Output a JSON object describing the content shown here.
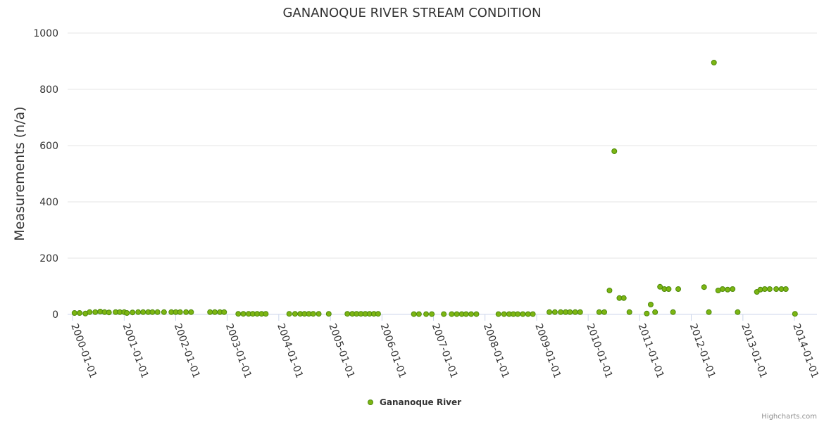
{
  "chart_data": {
    "type": "scatter",
    "title": "GANANOQUE RIVER STREAM CONDITION",
    "ylabel": "Measurements (n/a)",
    "xlabel": "",
    "ylim": [
      0,
      1000
    ],
    "yticks": [
      0,
      200,
      400,
      600,
      800,
      1000
    ],
    "xlim": [
      "2000-01-01",
      "2014-01-01"
    ],
    "xticks": [
      "2000-01-01",
      "2001-01-01",
      "2002-01-01",
      "2003-01-01",
      "2004-01-01",
      "2005-01-01",
      "2006-01-01",
      "2007-01-01",
      "2008-01-01",
      "2009-01-01",
      "2010-01-01",
      "2011-01-01",
      "2012-01-01",
      "2013-01-01",
      "2014-01-01"
    ],
    "grid": true,
    "legend_position": "bottom-center",
    "series": [
      {
        "name": "Gananoque River",
        "color": "#7cb513",
        "stroke": "#4d8a0a",
        "points": [
          [
            "2000-01-15",
            5
          ],
          [
            "2000-02-20",
            5
          ],
          [
            "2000-04-01",
            3
          ],
          [
            "2000-05-01",
            8
          ],
          [
            "2000-06-10",
            8
          ],
          [
            "2000-07-15",
            10
          ],
          [
            "2000-08-15",
            8
          ],
          [
            "2000-09-15",
            7
          ],
          [
            "2000-11-01",
            8
          ],
          [
            "2000-12-01",
            8
          ],
          [
            "2001-01-01",
            8
          ],
          [
            "2001-01-20",
            5
          ],
          [
            "2001-03-01",
            7
          ],
          [
            "2001-04-10",
            8
          ],
          [
            "2001-05-15",
            8
          ],
          [
            "2001-06-20",
            8
          ],
          [
            "2001-07-20",
            8
          ],
          [
            "2001-08-25",
            8
          ],
          [
            "2001-10-10",
            8
          ],
          [
            "2001-12-01",
            8
          ],
          [
            "2002-01-01",
            8
          ],
          [
            "2002-02-01",
            8
          ],
          [
            "2002-03-15",
            8
          ],
          [
            "2002-04-20",
            8
          ],
          [
            "2002-09-01",
            8
          ],
          [
            "2002-10-05",
            8
          ],
          [
            "2002-11-10",
            8
          ],
          [
            "2002-12-10",
            8
          ],
          [
            "2003-03-20",
            2
          ],
          [
            "2003-04-25",
            2
          ],
          [
            "2003-06-01",
            2
          ],
          [
            "2003-07-01",
            2
          ],
          [
            "2003-08-01",
            2
          ],
          [
            "2003-09-01",
            2
          ],
          [
            "2003-10-01",
            2
          ],
          [
            "2004-03-15",
            2
          ],
          [
            "2004-04-25",
            2
          ],
          [
            "2004-06-01",
            2
          ],
          [
            "2004-07-01",
            2
          ],
          [
            "2004-08-01",
            2
          ],
          [
            "2004-09-01",
            2
          ],
          [
            "2004-10-10",
            2
          ],
          [
            "2004-12-20",
            2
          ],
          [
            "2005-05-01",
            2
          ],
          [
            "2005-06-05",
            2
          ],
          [
            "2005-07-05",
            2
          ],
          [
            "2005-08-05",
            2
          ],
          [
            "2005-09-05",
            2
          ],
          [
            "2005-10-05",
            2
          ],
          [
            "2005-11-05",
            2
          ],
          [
            "2005-12-05",
            2
          ],
          [
            "2006-08-15",
            1
          ],
          [
            "2006-09-20",
            1
          ],
          [
            "2006-11-10",
            1
          ],
          [
            "2006-12-20",
            1
          ],
          [
            "2007-03-15",
            1
          ],
          [
            "2007-05-10",
            1
          ],
          [
            "2007-06-15",
            1
          ],
          [
            "2007-07-20",
            1
          ],
          [
            "2007-08-20",
            1
          ],
          [
            "2007-09-25",
            1
          ],
          [
            "2007-11-01",
            1
          ],
          [
            "2008-04-05",
            1
          ],
          [
            "2008-05-15",
            1
          ],
          [
            "2008-06-20",
            1
          ],
          [
            "2008-07-20",
            1
          ],
          [
            "2008-08-20",
            1
          ],
          [
            "2008-09-25",
            1
          ],
          [
            "2008-11-01",
            1
          ],
          [
            "2008-12-05",
            1
          ],
          [
            "2009-04-01",
            8
          ],
          [
            "2009-05-10",
            8
          ],
          [
            "2009-06-20",
            8
          ],
          [
            "2009-07-25",
            8
          ],
          [
            "2009-08-25",
            8
          ],
          [
            "2009-10-01",
            8
          ],
          [
            "2009-11-05",
            8
          ],
          [
            "2010-03-20",
            8
          ],
          [
            "2010-04-25",
            8
          ],
          [
            "2010-06-01",
            85
          ],
          [
            "2010-07-05",
            580
          ],
          [
            "2010-08-10",
            58
          ],
          [
            "2010-09-10",
            58
          ],
          [
            "2010-10-20",
            8
          ],
          [
            "2011-02-20",
            3
          ],
          [
            "2011-03-20",
            35
          ],
          [
            "2011-04-20",
            8
          ],
          [
            "2011-05-25",
            98
          ],
          [
            "2011-06-25",
            90
          ],
          [
            "2011-07-25",
            90
          ],
          [
            "2011-08-25",
            8
          ],
          [
            "2011-10-01",
            90
          ],
          [
            "2012-04-01",
            97
          ],
          [
            "2012-05-05",
            8
          ],
          [
            "2012-06-10",
            895
          ],
          [
            "2012-07-10",
            85
          ],
          [
            "2012-08-10",
            90
          ],
          [
            "2012-09-15",
            88
          ],
          [
            "2012-10-20",
            90
          ],
          [
            "2012-11-25",
            8
          ],
          [
            "2013-04-10",
            80
          ],
          [
            "2013-05-05",
            88
          ],
          [
            "2013-06-05",
            90
          ],
          [
            "2013-07-10",
            90
          ],
          [
            "2013-08-25",
            90
          ],
          [
            "2013-10-01",
            90
          ],
          [
            "2013-11-01",
            90
          ],
          [
            "2014-01-05",
            2
          ]
        ]
      }
    ]
  },
  "credits": "Highcharts.com",
  "colors": {
    "grid": "#e6e6e6",
    "axis": "#ccd6eb",
    "text": "#333333",
    "credits": "#909090"
  }
}
